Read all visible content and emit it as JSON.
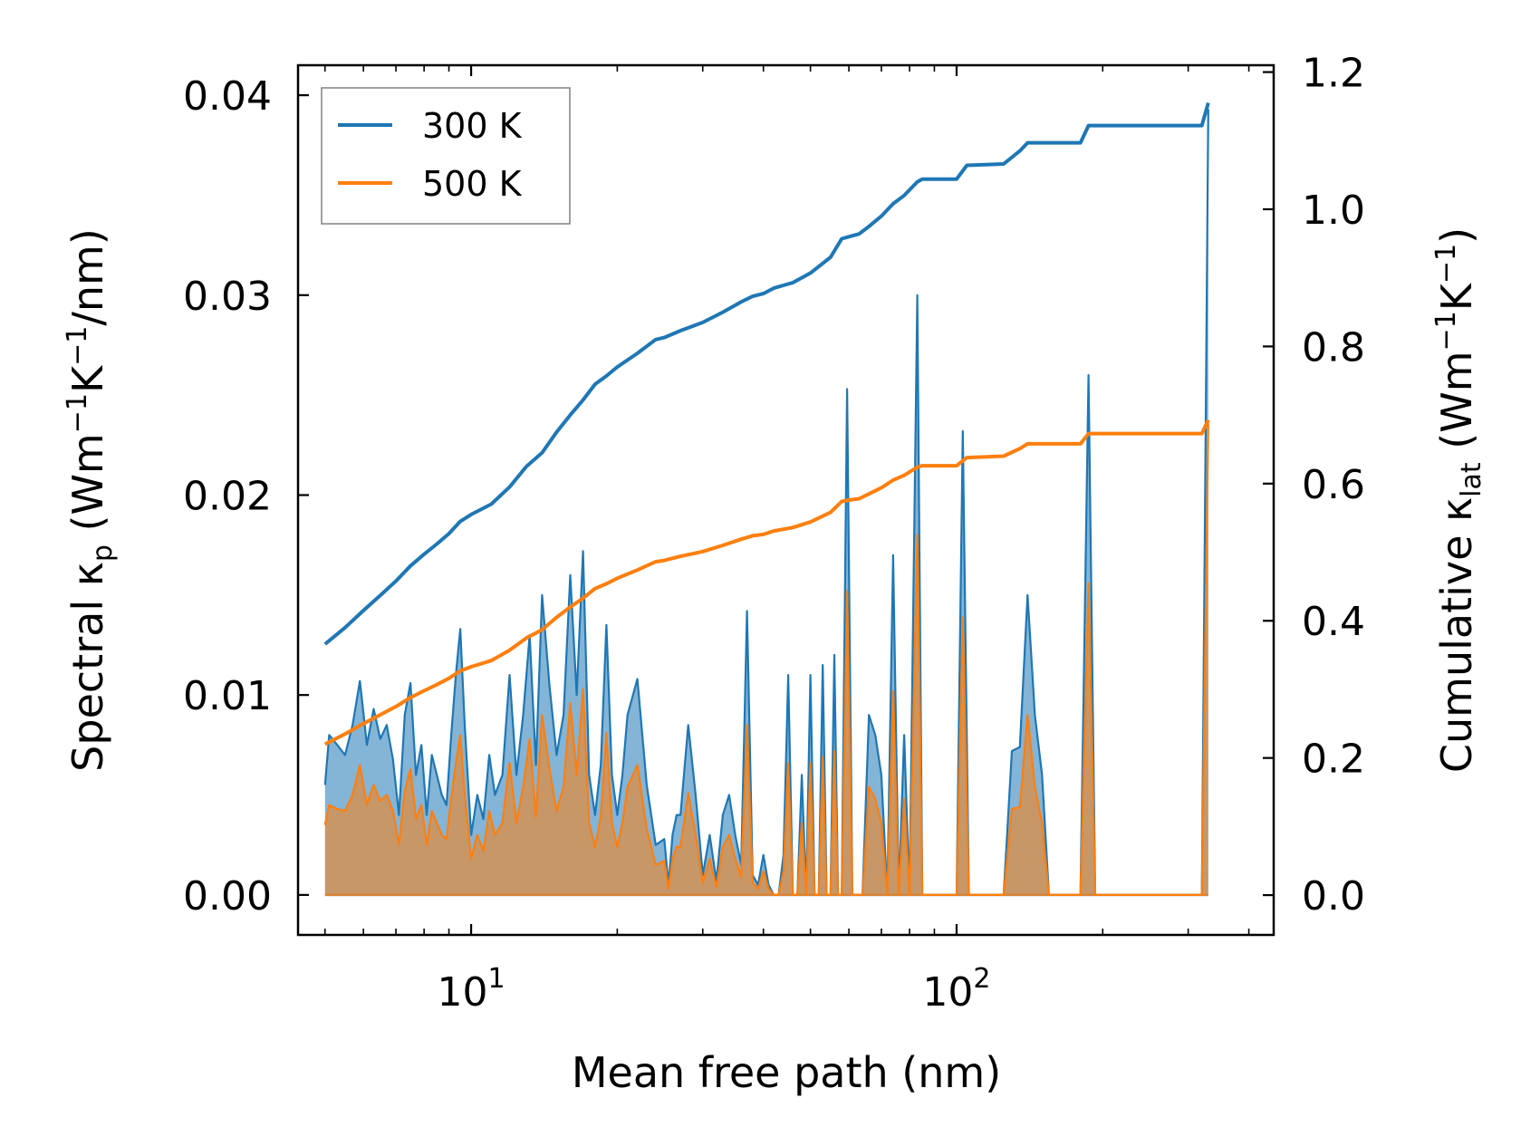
{
  "chart_data": {
    "type": "line",
    "xscale": "log",
    "xlabel": "Mean free path (nm)",
    "ylabel_left": {
      "main": "Spectral κ",
      "sub": "p",
      "unit_open": " (Wm",
      "exp1": "−1",
      "mid": "K",
      "exp2": "−1",
      "tail": "/nm)"
    },
    "ylabel_right": {
      "main": "Cumulative κ",
      "sub": "lat",
      "unit_open": " (Wm",
      "exp1": "−1",
      "mid": "K",
      "exp2": "−1",
      "tail": ")"
    },
    "xlim": [
      4.4,
      450
    ],
    "ylim_left": [
      -0.002,
      0.0415
    ],
    "ylim_right": [
      -0.058,
      1.21
    ],
    "xticks": [
      {
        "value": 10,
        "base": "10",
        "exp": "1"
      },
      {
        "value": 100,
        "base": "10",
        "exp": "2"
      }
    ],
    "yticks_left": [
      {
        "value": 0.0,
        "label": "0.00"
      },
      {
        "value": 0.01,
        "label": "0.01"
      },
      {
        "value": 0.02,
        "label": "0.02"
      },
      {
        "value": 0.03,
        "label": "0.03"
      },
      {
        "value": 0.04,
        "label": "0.04"
      }
    ],
    "yticks_right": [
      {
        "value": 0.0,
        "label": "0.0"
      },
      {
        "value": 0.2,
        "label": "0.2"
      },
      {
        "value": 0.4,
        "label": "0.4"
      },
      {
        "value": 0.6,
        "label": "0.6"
      },
      {
        "value": 0.8,
        "label": "0.8"
      },
      {
        "value": 1.0,
        "label": "1.0"
      },
      {
        "value": 1.2,
        "label": "1.2"
      }
    ],
    "legend": {
      "position": "top-left",
      "entries": [
        "300 K",
        "500 K"
      ]
    },
    "colors": {
      "300 K": "#1f77b4",
      "500 K": "#ff7f0e"
    },
    "series": [
      {
        "name": "300 K",
        "kind": "spectral",
        "axis": "left",
        "x": [
          5.0,
          5.1,
          5.3,
          5.5,
          5.7,
          5.9,
          6.1,
          6.3,
          6.5,
          6.7,
          6.9,
          7.1,
          7.3,
          7.5,
          7.7,
          7.9,
          8.1,
          8.3,
          8.5,
          8.7,
          8.9,
          9.1,
          9.3,
          9.5,
          9.7,
          10.0,
          10.3,
          10.6,
          10.9,
          11.2,
          11.6,
          12.0,
          12.4,
          12.8,
          13.2,
          13.6,
          14.0,
          14.5,
          15.0,
          15.5,
          16.0,
          16.5,
          17.0,
          17.5,
          18.0,
          18.5,
          19.0,
          19.5,
          20.0,
          20.5,
          21.0,
          22.0,
          23.0,
          24.0,
          25.0,
          25.5,
          26.0,
          26.5,
          27.0,
          28.0,
          29.0,
          30.0,
          31.0,
          32.0,
          33.0,
          34.0,
          35.0,
          36.0,
          37.0,
          38.0,
          39.0,
          40.0,
          41.0,
          42.0,
          43.0,
          44.0,
          45.0,
          46.0,
          47.0,
          48.0,
          49.0,
          50.0,
          51.0,
          52.0,
          53.0,
          54.0,
          55.0,
          56.0,
          57.0,
          58.0,
          59.5,
          61.0,
          62.5,
          64.0,
          66.0,
          68.0,
          70.0,
          72.0,
          74.0,
          76.0,
          78.0,
          80.0,
          83.0,
          85.0,
          87.0,
          100.0,
          103.0,
          106.0,
          109.0,
          125.0,
          130.0,
          135.0,
          140.0,
          145.0,
          150.0,
          155.0,
          180.0,
          187.0,
          193.0,
          320.0,
          330.0
        ],
        "y": [
          0.0055,
          0.008,
          0.0075,
          0.007,
          0.0085,
          0.0107,
          0.0075,
          0.0093,
          0.0078,
          0.0085,
          0.0068,
          0.004,
          0.009,
          0.0106,
          0.006,
          0.0075,
          0.004,
          0.007,
          0.006,
          0.005,
          0.0045,
          0.008,
          0.011,
          0.0133,
          0.0085,
          0.003,
          0.005,
          0.0038,
          0.007,
          0.005,
          0.006,
          0.011,
          0.006,
          0.009,
          0.013,
          0.0065,
          0.015,
          0.0105,
          0.007,
          0.009,
          0.016,
          0.01,
          0.0172,
          0.006,
          0.004,
          0.0065,
          0.0135,
          0.006,
          0.004,
          0.006,
          0.009,
          0.0108,
          0.0055,
          0.0025,
          0.0028,
          0.0005,
          0.003,
          0.004,
          0.004,
          0.0085,
          0.005,
          0.001,
          0.003,
          0.0007,
          0.004,
          0.005,
          0.003,
          0.0015,
          0.0142,
          0.001,
          0.0005,
          0.002,
          0.0005,
          0.0,
          0.0,
          0.002,
          0.011,
          0.0,
          0.0,
          0.006,
          0.0,
          0.011,
          0.0,
          0.0,
          0.0115,
          0.0,
          0.0,
          0.012,
          0.0,
          0.0,
          0.0253,
          0.0,
          0.0,
          0.0,
          0.009,
          0.008,
          0.006,
          0.0,
          0.017,
          0.0,
          0.008,
          0.0,
          0.03,
          0.0,
          0.0,
          0.0,
          0.0232,
          0.0,
          0.0,
          0.0,
          0.0072,
          0.0074,
          0.015,
          0.009,
          0.006,
          0.0,
          0.0,
          0.026,
          0.0,
          0.0,
          0.0393
        ]
      },
      {
        "name": "500 K",
        "kind": "spectral",
        "axis": "left",
        "x": [
          5.0,
          5.1,
          5.3,
          5.5,
          5.7,
          5.9,
          6.1,
          6.3,
          6.5,
          6.7,
          6.9,
          7.1,
          7.3,
          7.5,
          7.7,
          7.9,
          8.1,
          8.3,
          8.5,
          8.7,
          8.9,
          9.1,
          9.3,
          9.5,
          9.7,
          10.0,
          10.3,
          10.6,
          10.9,
          11.2,
          11.6,
          12.0,
          12.4,
          12.8,
          13.2,
          13.6,
          14.0,
          14.5,
          15.0,
          15.5,
          16.0,
          16.5,
          17.0,
          17.5,
          18.0,
          18.5,
          19.0,
          19.5,
          20.0,
          20.5,
          21.0,
          22.0,
          23.0,
          24.0,
          25.0,
          25.5,
          26.0,
          26.5,
          27.0,
          28.0,
          29.0,
          30.0,
          31.0,
          32.0,
          33.0,
          34.0,
          35.0,
          36.0,
          37.0,
          38.0,
          39.0,
          40.0,
          41.0,
          42.0,
          43.0,
          44.0,
          45.0,
          46.0,
          47.0,
          48.0,
          49.0,
          50.0,
          51.0,
          52.0,
          53.0,
          54.0,
          55.0,
          56.0,
          57.0,
          58.0,
          59.5,
          61.0,
          62.5,
          64.0,
          66.0,
          68.0,
          70.0,
          72.0,
          74.0,
          76.0,
          78.0,
          80.0,
          83.0,
          85.0,
          87.0,
          100.0,
          103.0,
          106.0,
          109.0,
          125.0,
          130.0,
          135.0,
          140.0,
          145.0,
          150.0,
          155.0,
          180.0,
          187.0,
          193.0,
          320.0,
          330.0
        ],
        "y": [
          0.0035,
          0.0045,
          0.0043,
          0.0042,
          0.005,
          0.0065,
          0.0045,
          0.0055,
          0.0047,
          0.005,
          0.0042,
          0.0025,
          0.0052,
          0.0063,
          0.0038,
          0.0045,
          0.0025,
          0.0042,
          0.0036,
          0.003,
          0.0028,
          0.0048,
          0.0066,
          0.008,
          0.005,
          0.0018,
          0.003,
          0.0022,
          0.0042,
          0.003,
          0.0036,
          0.0066,
          0.0036,
          0.0054,
          0.0078,
          0.0039,
          0.009,
          0.0063,
          0.0042,
          0.0054,
          0.0096,
          0.006,
          0.0103,
          0.0036,
          0.0024,
          0.0039,
          0.0081,
          0.0036,
          0.0024,
          0.0036,
          0.0054,
          0.0065,
          0.0033,
          0.0015,
          0.0017,
          0.0003,
          0.0018,
          0.0024,
          0.0024,
          0.0051,
          0.003,
          0.0006,
          0.0018,
          0.0004,
          0.0024,
          0.003,
          0.0018,
          0.0009,
          0.0085,
          0.0006,
          0.0003,
          0.0012,
          0.0003,
          0.0,
          0.0,
          0.0012,
          0.0066,
          0.0,
          0.0,
          0.0036,
          0.0,
          0.0066,
          0.0,
          0.0,
          0.0069,
          0.0,
          0.0,
          0.0072,
          0.0,
          0.0,
          0.0152,
          0.0,
          0.0,
          0.0,
          0.0054,
          0.0048,
          0.0036,
          0.0,
          0.0102,
          0.0,
          0.0048,
          0.0,
          0.018,
          0.0,
          0.0,
          0.0,
          0.0139,
          0.0,
          0.0,
          0.0,
          0.0043,
          0.0044,
          0.009,
          0.0054,
          0.0036,
          0.0,
          0.0,
          0.0156,
          0.0,
          0.0,
          0.0236
        ]
      },
      {
        "name": "300 K",
        "kind": "cumulative",
        "axis": "right",
        "x": [
          5.0,
          5.5,
          6.0,
          6.5,
          7.0,
          7.5,
          8.0,
          8.5,
          9.0,
          9.5,
          10.0,
          11.0,
          12.0,
          13.0,
          14.0,
          15.0,
          16.0,
          17.0,
          18.0,
          19.0,
          20.0,
          22.0,
          24.0,
          25.0,
          27.0,
          30.0,
          33.0,
          36.0,
          38.0,
          40.0,
          42.0,
          46.0,
          50.0,
          55.0,
          58.0,
          60.0,
          63.0,
          66.0,
          70.0,
          74.0,
          78.0,
          83.0,
          85.0,
          100.0,
          105.0,
          125.0,
          135.0,
          140.0,
          145.0,
          180.0,
          187.0,
          320.0,
          330.0
        ],
        "y": [
          0.366,
          0.39,
          0.415,
          0.437,
          0.458,
          0.48,
          0.497,
          0.512,
          0.527,
          0.545,
          0.555,
          0.57,
          0.595,
          0.625,
          0.645,
          0.675,
          0.7,
          0.722,
          0.745,
          0.757,
          0.77,
          0.79,
          0.81,
          0.813,
          0.823,
          0.835,
          0.85,
          0.865,
          0.873,
          0.877,
          0.885,
          0.893,
          0.907,
          0.93,
          0.957,
          0.96,
          0.964,
          0.975,
          0.99,
          1.008,
          1.02,
          1.04,
          1.044,
          1.044,
          1.064,
          1.066,
          1.085,
          1.097,
          1.097,
          1.097,
          1.122,
          1.122,
          1.155
        ]
      },
      {
        "name": "500 K",
        "kind": "cumulative",
        "axis": "right",
        "x": [
          5.0,
          5.5,
          6.0,
          6.5,
          7.0,
          7.5,
          8.0,
          8.5,
          9.0,
          9.5,
          10.0,
          11.0,
          12.0,
          13.0,
          14.0,
          15.0,
          16.0,
          17.0,
          18.0,
          19.0,
          20.0,
          22.0,
          24.0,
          25.0,
          27.0,
          30.0,
          33.0,
          36.0,
          38.0,
          40.0,
          42.0,
          46.0,
          50.0,
          55.0,
          58.0,
          60.0,
          63.0,
          66.0,
          70.0,
          74.0,
          78.0,
          83.0,
          85.0,
          100.0,
          105.0,
          125.0,
          135.0,
          140.0,
          145.0,
          180.0,
          187.0,
          320.0,
          330.0
        ],
        "y": [
          0.22,
          0.235,
          0.25,
          0.263,
          0.275,
          0.288,
          0.298,
          0.307,
          0.316,
          0.327,
          0.333,
          0.342,
          0.357,
          0.375,
          0.387,
          0.405,
          0.42,
          0.433,
          0.447,
          0.454,
          0.462,
          0.474,
          0.486,
          0.488,
          0.494,
          0.501,
          0.51,
          0.519,
          0.524,
          0.526,
          0.531,
          0.536,
          0.544,
          0.558,
          0.574,
          0.576,
          0.578,
          0.585,
          0.594,
          0.605,
          0.612,
          0.624,
          0.626,
          0.626,
          0.638,
          0.64,
          0.651,
          0.658,
          0.658,
          0.658,
          0.673,
          0.673,
          0.693
        ]
      }
    ]
  }
}
